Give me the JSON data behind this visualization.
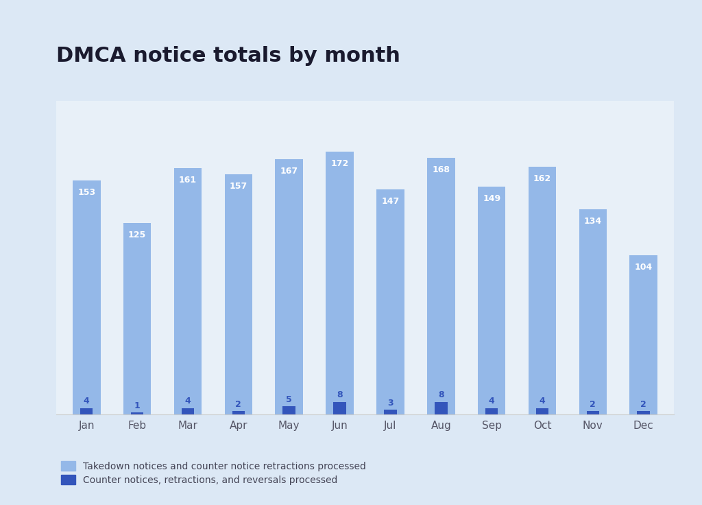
{
  "title": "DMCA notice totals by month",
  "months": [
    "Jan",
    "Feb",
    "Mar",
    "Apr",
    "May",
    "Jun",
    "Jul",
    "Aug",
    "Sep",
    "Oct",
    "Nov",
    "Dec"
  ],
  "takedown": [
    153,
    125,
    161,
    157,
    167,
    172,
    147,
    168,
    149,
    162,
    134,
    104
  ],
  "counter": [
    4,
    1,
    4,
    2,
    5,
    8,
    3,
    8,
    4,
    4,
    2,
    2
  ],
  "takedown_color": "#94b8e8",
  "counter_color": "#3355bb",
  "page_bg_color": "#dce8f5",
  "plot_bg_color": "#e8f0f8",
  "title_fontsize": 22,
  "tick_fontsize": 11,
  "legend_label_takedown": "Takedown notices and counter notice retractions processed",
  "legend_label_counter": "Counter notices, retractions, and reversals processed",
  "bar_width": 0.55,
  "counter_bar_width": 0.25
}
